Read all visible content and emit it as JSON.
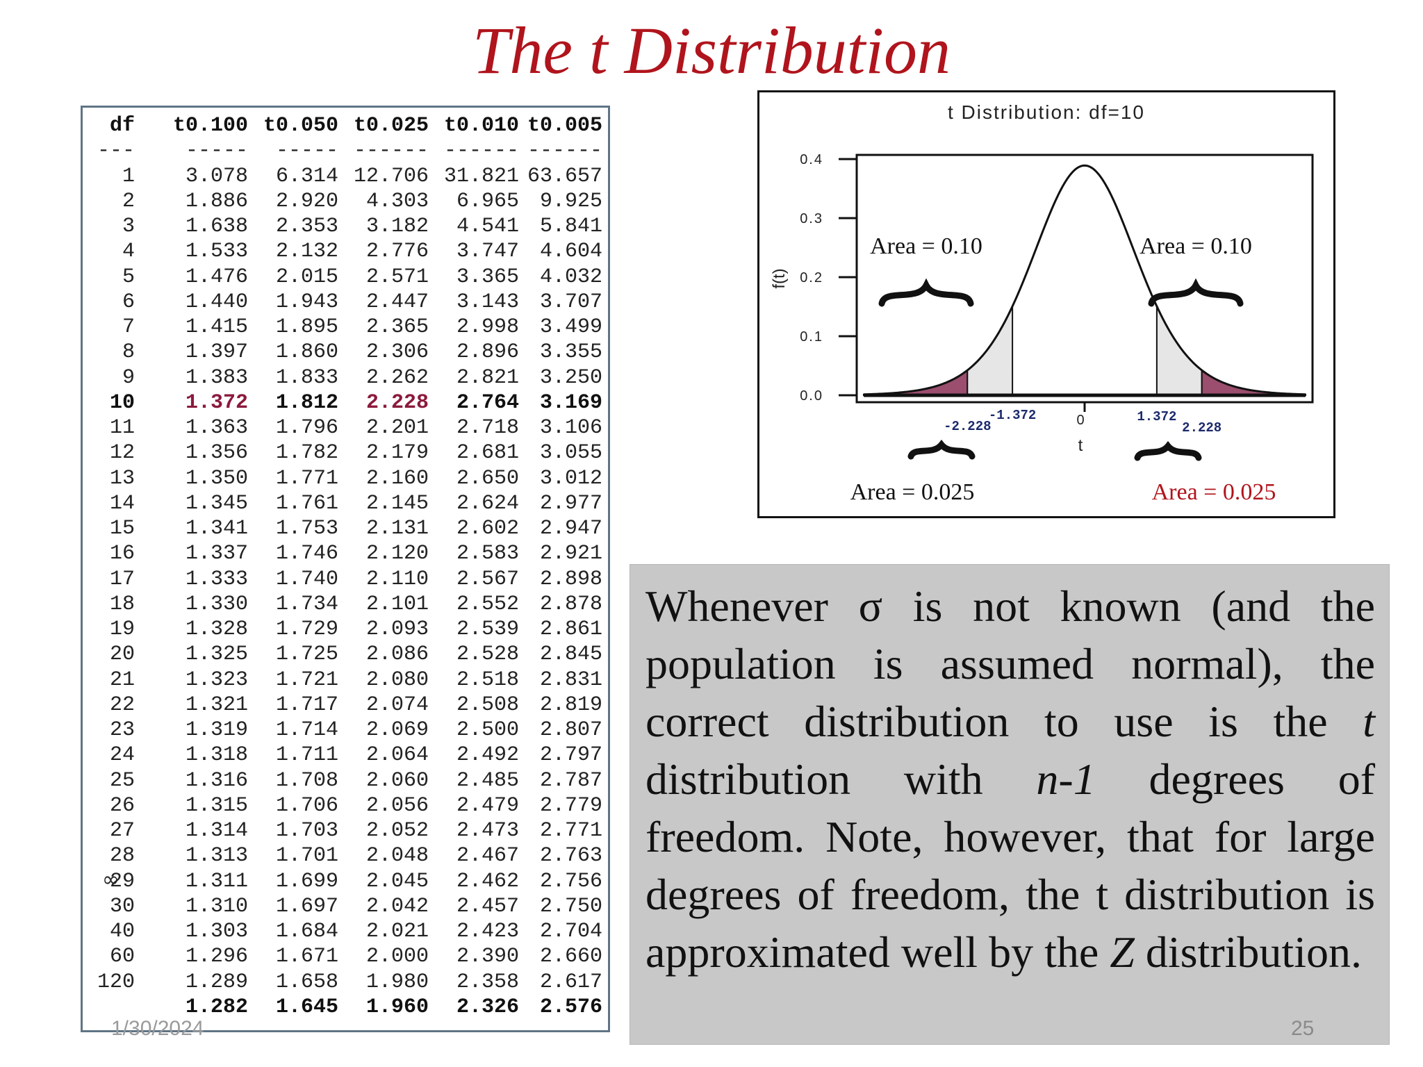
{
  "title": "The t Distribution",
  "table": {
    "headers": [
      "df",
      "t0.100",
      "t0.050",
      "t0.025",
      "t0.010",
      "t0.005"
    ],
    "separators": [
      "---",
      "-----",
      "-----",
      "------",
      "------",
      "------"
    ],
    "highlight_row_df": "10",
    "rows": [
      [
        "1",
        "3.078",
        "6.314",
        "12.706",
        "31.821",
        "63.657"
      ],
      [
        "2",
        "1.886",
        "2.920",
        "4.303",
        "6.965",
        "9.925"
      ],
      [
        "3",
        "1.638",
        "2.353",
        "3.182",
        "4.541",
        "5.841"
      ],
      [
        "4",
        "1.533",
        "2.132",
        "2.776",
        "3.747",
        "4.604"
      ],
      [
        "5",
        "1.476",
        "2.015",
        "2.571",
        "3.365",
        "4.032"
      ],
      [
        "6",
        "1.440",
        "1.943",
        "2.447",
        "3.143",
        "3.707"
      ],
      [
        "7",
        "1.415",
        "1.895",
        "2.365",
        "2.998",
        "3.499"
      ],
      [
        "8",
        "1.397",
        "1.860",
        "2.306",
        "2.896",
        "3.355"
      ],
      [
        "9",
        "1.383",
        "1.833",
        "2.262",
        "2.821",
        "3.250"
      ],
      [
        "10",
        "1.372",
        "1.812",
        "2.228",
        "2.764",
        "3.169"
      ],
      [
        "11",
        "1.363",
        "1.796",
        "2.201",
        "2.718",
        "3.106"
      ],
      [
        "12",
        "1.356",
        "1.782",
        "2.179",
        "2.681",
        "3.055"
      ],
      [
        "13",
        "1.350",
        "1.771",
        "2.160",
        "2.650",
        "3.012"
      ],
      [
        "14",
        "1.345",
        "1.761",
        "2.145",
        "2.624",
        "2.977"
      ],
      [
        "15",
        "1.341",
        "1.753",
        "2.131",
        "2.602",
        "2.947"
      ],
      [
        "16",
        "1.337",
        "1.746",
        "2.120",
        "2.583",
        "2.921"
      ],
      [
        "17",
        "1.333",
        "1.740",
        "2.110",
        "2.567",
        "2.898"
      ],
      [
        "18",
        "1.330",
        "1.734",
        "2.101",
        "2.552",
        "2.878"
      ],
      [
        "19",
        "1.328",
        "1.729",
        "2.093",
        "2.539",
        "2.861"
      ],
      [
        "20",
        "1.325",
        "1.725",
        "2.086",
        "2.528",
        "2.845"
      ],
      [
        "21",
        "1.323",
        "1.721",
        "2.080",
        "2.518",
        "2.831"
      ],
      [
        "22",
        "1.321",
        "1.717",
        "2.074",
        "2.508",
        "2.819"
      ],
      [
        "23",
        "1.319",
        "1.714",
        "2.069",
        "2.500",
        "2.807"
      ],
      [
        "24",
        "1.318",
        "1.711",
        "2.064",
        "2.492",
        "2.797"
      ],
      [
        "25",
        "1.316",
        "1.708",
        "2.060",
        "2.485",
        "2.787"
      ],
      [
        "26",
        "1.315",
        "1.706",
        "2.056",
        "2.479",
        "2.779"
      ],
      [
        "27",
        "1.314",
        "1.703",
        "2.052",
        "2.473",
        "2.771"
      ],
      [
        "28",
        "1.313",
        "1.701",
        "2.048",
        "2.467",
        "2.763"
      ],
      [
        "29",
        "1.311",
        "1.699",
        "2.045",
        "2.462",
        "2.756"
      ],
      [
        "30",
        "1.310",
        "1.697",
        "2.042",
        "2.457",
        "2.750"
      ],
      [
        "40",
        "1.303",
        "1.684",
        "2.021",
        "2.423",
        "2.704"
      ],
      [
        "60",
        "1.296",
        "1.671",
        "2.000",
        "2.390",
        "2.660"
      ],
      [
        "120",
        "1.289",
        "1.658",
        "1.980",
        "2.358",
        "2.617"
      ],
      [
        "",
        "1.282",
        "1.645",
        "1.960",
        "2.326",
        "2.576"
      ]
    ],
    "infinity_symbol": "∞"
  },
  "chart_data": {
    "type": "line",
    "title": "t Distribution: df=10",
    "xlabel": "t",
    "ylabel": "f(t)",
    "df": 10,
    "xlim": [
      -4.2,
      4.2
    ],
    "ylim": [
      0,
      0.4
    ],
    "y_ticks": [
      "0.0",
      "0.1",
      "0.2",
      "0.3",
      "0.4"
    ],
    "x_tick_labels": [
      {
        "value": -2.228,
        "label": "-2.228"
      },
      {
        "value": -1.372,
        "label": "-1.372"
      },
      {
        "value": 0,
        "label": "0"
      },
      {
        "value": 1.372,
        "label": "1.372"
      },
      {
        "value": 2.228,
        "label": "2.228"
      }
    ],
    "shaded_regions": [
      {
        "from": -4.2,
        "to": -2.228,
        "color": "#9b4e6e"
      },
      {
        "from": -2.228,
        "to": -1.372,
        "color": "#e6e6e6"
      },
      {
        "from": 1.372,
        "to": 2.228,
        "color": "#e6e6e6"
      },
      {
        "from": 2.228,
        "to": 4.2,
        "color": "#9b4e6e"
      }
    ],
    "annotations": [
      {
        "text": "Area = 0.10",
        "color": "#111111"
      },
      {
        "text": "Area = 0.10",
        "color": "#111111"
      },
      {
        "text": "Area = 0.025",
        "color": "#111111"
      },
      {
        "text": "Area = 0.025",
        "color": "#b0141c"
      }
    ]
  },
  "description": {
    "p1": "Whenever σ is not known (and the population is assumed normal), the correct distribution to use is the ",
    "t_italic": "t",
    "p2": " distribution with ",
    "n1_italic": "n-1",
    "p3": " degrees of freedom.  Note, however, that for large degrees of freedom, the t distribution is approximated well by the ",
    "z_italic": "Z",
    "p4": " distribution."
  },
  "footer": {
    "date": "1/30/2024",
    "page_number": "25"
  }
}
